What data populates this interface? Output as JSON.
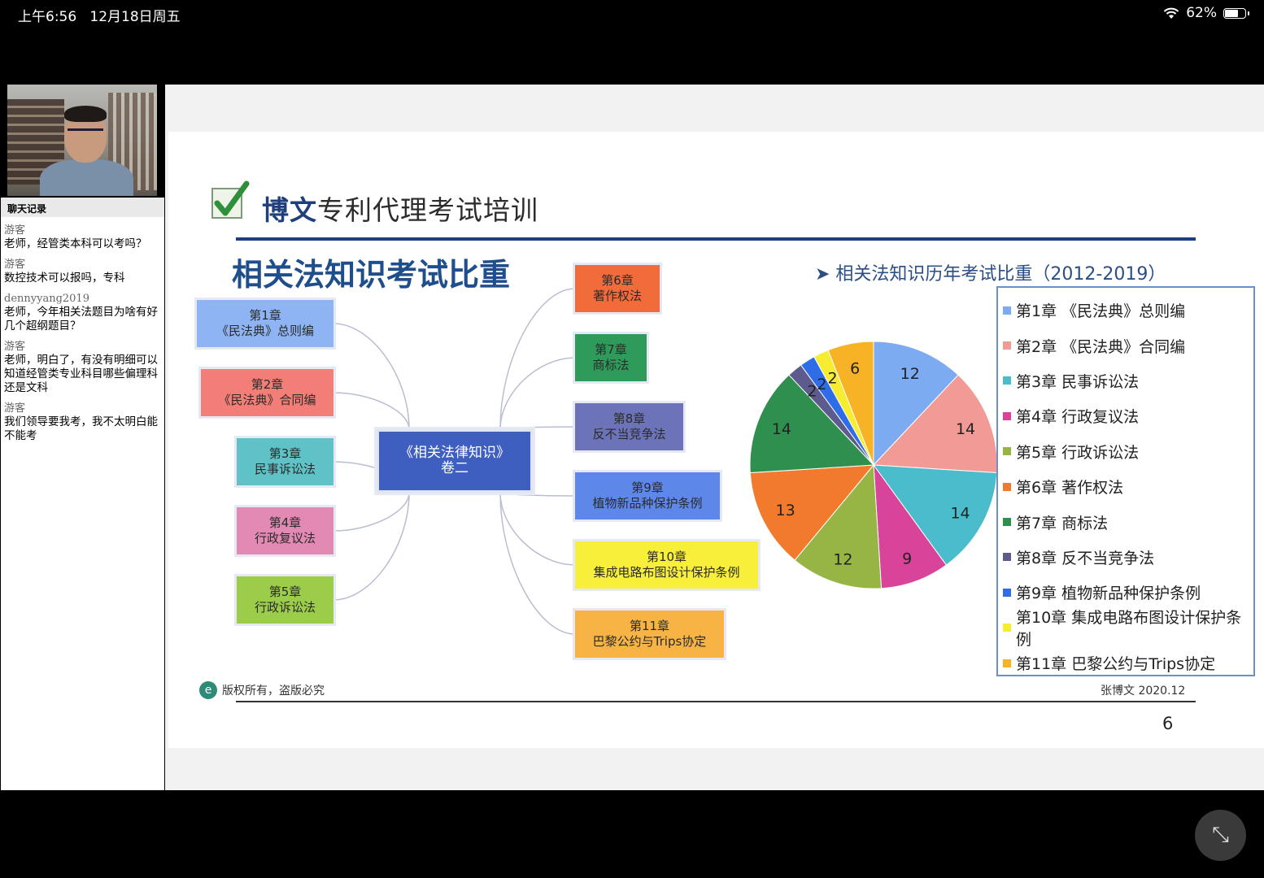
{
  "status_bar": {
    "time": "上午6:56",
    "date": "12月18日周五",
    "battery": "62%"
  },
  "chat": {
    "title": "聊天记录",
    "messages": [
      {
        "user": "游客",
        "text": "老师，经管类本科可以考吗？"
      },
      {
        "user": "游客",
        "text": "数控技术可以报吗，专科"
      },
      {
        "user": "dennyyang2019",
        "text": "老师，今年相关法题目为啥有好几个超纲题目？"
      },
      {
        "user": "游客",
        "text": "老师，明白了，有没有明细可以知道经管类专业科目哪些偏理科还是文科"
      },
      {
        "user": "游客",
        "text": "我们领导要我考，我不太明白能不能考"
      }
    ]
  },
  "slide": {
    "brand_bold": "博文",
    "brand_rest": "专利代理考试培训",
    "title": "相关法知识考试比重",
    "chart_title": "➤ 相关法知识历年考试比重（2012-2019）",
    "footer_left": "版权所有，盗版必究",
    "footer_right": "张博文 2020.12",
    "page_number": "6"
  },
  "mindmap": {
    "center": {
      "line1": "《相关法律知识》",
      "line2": "卷二"
    },
    "nodes": [
      {
        "line1": "第1章",
        "line2": "《民法典》总则编",
        "bg": "#8fb4f4"
      },
      {
        "line1": "第2章",
        "line2": "《民法典》合同编",
        "bg": "#f27e77"
      },
      {
        "line1": "第3章",
        "line2": "民事诉讼法",
        "bg": "#5ec2c6"
      },
      {
        "line1": "第4章",
        "line2": "行政复议法",
        "bg": "#e38ab4"
      },
      {
        "line1": "第5章",
        "line2": "行政诉讼法",
        "bg": "#9ccd4a"
      },
      {
        "line1": "第6章",
        "line2": "著作权法",
        "bg": "#f26b3a"
      },
      {
        "line1": "第7章",
        "line2": "商标法",
        "bg": "#2f9b5a"
      },
      {
        "line1": "第8章",
        "line2": "反不当竞争法",
        "bg": "#6c73b8"
      },
      {
        "line1": "第9章",
        "line2": "植物新品种保护条例",
        "bg": "#5d87e8"
      },
      {
        "line1": "第10章",
        "line2": "集成电路布图设计保护条例",
        "bg": "#f7ef3a"
      },
      {
        "line1": "第11章",
        "line2": "巴黎公约与Trips协定",
        "bg": "#f7b445"
      }
    ]
  },
  "chart_data": {
    "type": "pie",
    "title": "相关法知识历年考试比重（2012-2019）",
    "categories": [
      "第1章 《民法典》总则编",
      "第2章 《民法典》合同编",
      "第3章 民事诉讼法",
      "第4章 行政复议法",
      "第5章 行政诉讼法",
      "第6章 著作权法",
      "第7章 商标法",
      "第8章 反不当竞争法",
      "第9章 植物新品种保护条例",
      "第10章 集成电路布图设计保护条例",
      "第11章 巴黎公约与Trips协定"
    ],
    "values": [
      12,
      14,
      14,
      9,
      12,
      13,
      14,
      2,
      2,
      2,
      6
    ],
    "colors": [
      "#7cabf2",
      "#f29a96",
      "#4bbccc",
      "#d8449a",
      "#97b544",
      "#f27a2c",
      "#2f8f4e",
      "#5d5a8e",
      "#2f6ce8",
      "#f6ec30",
      "#f7b225"
    ],
    "legend_position": "right"
  },
  "icons": {
    "fullscreen_exit": "collapse-arrows-icon",
    "logo": "checkmark-logo-icon"
  }
}
